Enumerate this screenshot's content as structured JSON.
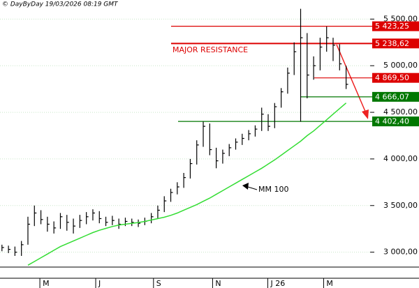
{
  "chart_data": {
    "type": "ohlc",
    "header": "© DayByDay 19/03/2026  08:19 GMT",
    "color": "#000000",
    "high": [
      3080,
      3070,
      3060,
      3120,
      3380,
      3500,
      3450,
      3380,
      3330,
      3420,
      3400,
      3360,
      3400,
      3430,
      3460,
      3440,
      3380,
      3390,
      3360,
      3370,
      3360,
      3350,
      3370,
      3420,
      3500,
      3600,
      3680,
      3750,
      3850,
      4000,
      4200,
      4400,
      4380,
      4120,
      4100,
      4160,
      4220,
      4270,
      4310,
      4360,
      4550,
      4480,
      4600,
      4760,
      4980,
      5250,
      5610,
      5350,
      5100,
      5300,
      5420,
      5300,
      5230,
      5000
    ],
    "low": [
      3010,
      2990,
      2960,
      2960,
      3080,
      3280,
      3300,
      3220,
      3200,
      3250,
      3230,
      3200,
      3260,
      3300,
      3340,
      3310,
      3280,
      3290,
      3250,
      3280,
      3280,
      3270,
      3290,
      3310,
      3360,
      3430,
      3540,
      3620,
      3690,
      3790,
      3940,
      4130,
      4040,
      3900,
      3950,
      4030,
      4100,
      4150,
      4200,
      4240,
      4300,
      4300,
      4330,
      4550,
      4700,
      4900,
      4400,
      4650,
      4850,
      4950,
      5150,
      5050,
      4950,
      4750
    ],
    "close": [
      3050,
      3030,
      3000,
      3080,
      3300,
      3420,
      3350,
      3300,
      3260,
      3380,
      3320,
      3280,
      3340,
      3380,
      3420,
      3360,
      3320,
      3340,
      3300,
      3330,
      3320,
      3310,
      3330,
      3380,
      3450,
      3550,
      3640,
      3700,
      3800,
      3950,
      4150,
      4350,
      4100,
      3980,
      4060,
      4120,
      4180,
      4220,
      4270,
      4320,
      4480,
      4350,
      4560,
      4720,
      4920,
      5150,
      5300,
      4900,
      5000,
      5200,
      5300,
      5220,
      5020,
      4800
    ],
    "series": [
      {
        "name": "MM 100",
        "color": "#33dd33",
        "values": [
          null,
          null,
          null,
          null,
          2860,
          2900,
          2940,
          2980,
          3020,
          3060,
          3090,
          3120,
          3150,
          3180,
          3210,
          3235,
          3255,
          3275,
          3290,
          3300,
          3310,
          3318,
          3330,
          3345,
          3360,
          3375,
          3395,
          3420,
          3450,
          3480,
          3510,
          3545,
          3580,
          3620,
          3660,
          3700,
          3740,
          3780,
          3820,
          3860,
          3900,
          3945,
          3990,
          4040,
          4090,
          4140,
          4190,
          4250,
          4300,
          4360,
          4420,
          4480,
          4540,
          4600
        ]
      }
    ],
    "levels": [
      {
        "value": 5423.25,
        "label": "5 423,25",
        "color": "#dd0000"
      },
      {
        "value": 5238.62,
        "label": "5 238,62",
        "color": "#dd0000"
      },
      {
        "value": 4869.5,
        "label": "4 869,50",
        "color": "#dd0000"
      },
      {
        "value": 4666.07,
        "label": "4 666,07",
        "color": "#007700"
      },
      {
        "value": 4402.4,
        "label": "4 402,40",
        "color": "#007700"
      }
    ],
    "annotation": "MAJOR RESISTANCE",
    "xlim": [
      -0.3,
      56.7
    ],
    "xticks": [
      {
        "value": 6.7,
        "label": "M"
      },
      {
        "value": 15.3,
        "label": "J"
      },
      {
        "value": 24.2,
        "label": "S"
      },
      {
        "value": 33.3,
        "label": "N"
      },
      {
        "value": 41.8,
        "label": "J 26"
      },
      {
        "value": 50.4,
        "label": "M"
      }
    ],
    "ylim": [
      2840,
      5630
    ],
    "yticks": [
      {
        "value": 3000,
        "label": "3 000,00"
      },
      {
        "value": 3500,
        "label": "3 500,00"
      },
      {
        "value": 4000,
        "label": "4 000,00"
      },
      {
        "value": 4500,
        "label": "4 500,00"
      },
      {
        "value": 5000,
        "label": "5 000,00"
      },
      {
        "value": 5500,
        "label": "5 500,00"
      }
    ],
    "grid": true
  }
}
